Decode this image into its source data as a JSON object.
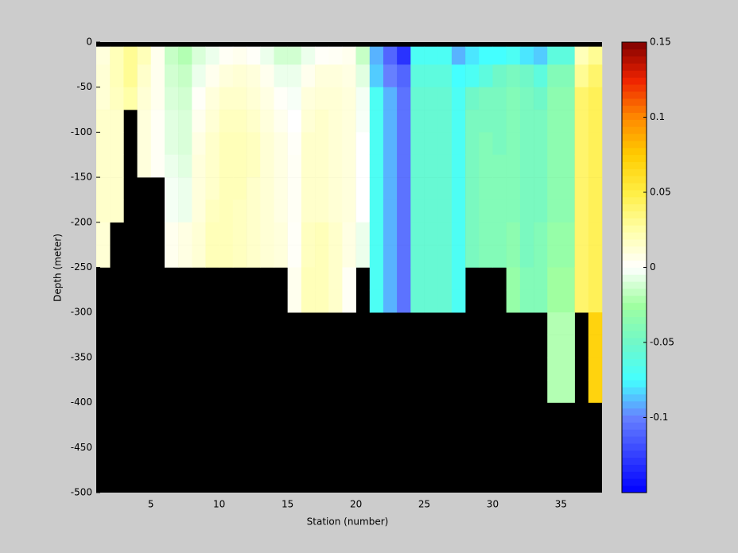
{
  "chart_data": {
    "type": "heatmap",
    "xlabel": "Station (number)",
    "ylabel": "Depth (meter)",
    "xlim": [
      1,
      38
    ],
    "ylim": [
      -500,
      0
    ],
    "xticks": [
      5,
      10,
      15,
      20,
      25,
      30,
      35
    ],
    "yticks": [
      0,
      -50,
      -100,
      -150,
      -200,
      -250,
      -300,
      -350,
      -400,
      -450,
      -500
    ],
    "x_edges": [
      1,
      2,
      3,
      4,
      5,
      6,
      7,
      8,
      9,
      10,
      11,
      12,
      13,
      14,
      15,
      16,
      17,
      18,
      19,
      20,
      21,
      22,
      23,
      24,
      25,
      26,
      27,
      28,
      29,
      30,
      31,
      32,
      33,
      34,
      35,
      36,
      37,
      38
    ],
    "y_edges": [
      -5,
      -25,
      -50,
      -75,
      -100,
      -125,
      -150,
      -175,
      -200,
      -225,
      -250,
      -275,
      -300,
      -325,
      -350,
      -375,
      -400,
      -425,
      -450,
      -475,
      -500
    ],
    "mask_color": "#000000",
    "clim": [
      -0.15,
      0.15
    ],
    "cticks": [
      -0.1,
      -0.05,
      0,
      0.05,
      0.1,
      0.15
    ],
    "colormap": [
      {
        "value": -0.15,
        "color": "#0000ff"
      },
      {
        "value": -0.1,
        "color": "#6680ff"
      },
      {
        "value": -0.075,
        "color": "#44ffff"
      },
      {
        "value": -0.05,
        "color": "#70f8c8"
      },
      {
        "value": -0.025,
        "color": "#a0ffa0"
      },
      {
        "value": 0,
        "color": "#ffffff"
      },
      {
        "value": 0.025,
        "color": "#ffffa8"
      },
      {
        "value": 0.05,
        "color": "#ffee44"
      },
      {
        "value": 0.075,
        "color": "#ffcc00"
      },
      {
        "value": 0.1,
        "color": "#ff8800"
      },
      {
        "value": 0.125,
        "color": "#ee2200"
      },
      {
        "value": 0.15,
        "color": "#800000"
      }
    ],
    "z": [
      [
        0.01,
        0.012,
        0.012,
        0.015,
        0.015,
        0.015,
        0.015,
        0.015,
        0.012,
        0.012,
        null,
        null,
        null,
        null,
        null,
        null,
        null,
        null,
        null,
        null
      ],
      [
        0.02,
        0.02,
        0.018,
        0.015,
        0.015,
        0.015,
        0.015,
        0.015,
        null,
        null,
        null,
        null,
        null,
        null,
        null,
        null,
        null,
        null,
        null,
        null
      ],
      [
        0.03,
        0.03,
        0.025,
        null,
        null,
        null,
        null,
        null,
        null,
        null,
        null,
        null,
        null,
        null,
        null,
        null,
        null,
        null,
        null,
        null
      ],
      [
        0.02,
        0.015,
        0.012,
        0.01,
        0.01,
        0.01,
        null,
        null,
        null,
        null,
        null,
        null,
        null,
        null,
        null,
        null,
        null,
        null,
        null,
        null
      ],
      [
        0.005,
        0.005,
        0.005,
        0.003,
        0.003,
        0.003,
        null,
        null,
        null,
        null,
        null,
        null,
        null,
        null,
        null,
        null,
        null,
        null,
        null,
        null
      ],
      [
        -0.015,
        -0.012,
        -0.01,
        -0.008,
        -0.008,
        -0.005,
        -0.003,
        -0.003,
        0.005,
        0.005,
        null,
        null,
        null,
        null,
        null,
        null,
        null,
        null,
        null,
        null
      ],
      [
        -0.02,
        -0.015,
        -0.012,
        -0.01,
        -0.01,
        -0.008,
        -0.005,
        -0.005,
        0.008,
        0.008,
        null,
        null,
        null,
        null,
        null,
        null,
        null,
        null,
        null,
        null
      ],
      [
        -0.01,
        -0.005,
        0.002,
        0.005,
        0.008,
        0.01,
        0.01,
        0.01,
        0.012,
        0.012,
        null,
        null,
        null,
        null,
        null,
        null,
        null,
        null,
        null,
        null
      ],
      [
        -0.005,
        0.005,
        0.01,
        0.012,
        0.015,
        0.015,
        0.015,
        0.018,
        0.02,
        0.02,
        null,
        null,
        null,
        null,
        null,
        null,
        null,
        null,
        null,
        null
      ],
      [
        0.003,
        0.01,
        0.015,
        0.018,
        0.02,
        0.02,
        0.02,
        0.02,
        0.02,
        0.02,
        null,
        null,
        null,
        null,
        null,
        null,
        null,
        null,
        null,
        null
      ],
      [
        0.005,
        0.012,
        0.015,
        0.018,
        0.02,
        0.02,
        0.02,
        0.018,
        0.018,
        0.018,
        null,
        null,
        null,
        null,
        null,
        null,
        null,
        null,
        null,
        null
      ],
      [
        0.002,
        0.01,
        0.012,
        0.015,
        0.018,
        0.018,
        0.015,
        0.015,
        0.015,
        0.015,
        null,
        null,
        null,
        null,
        null,
        null,
        null,
        null,
        null,
        null
      ],
      [
        -0.005,
        0.005,
        0.008,
        0.01,
        0.012,
        0.012,
        0.012,
        0.012,
        0.012,
        0.012,
        null,
        null,
        null,
        null,
        null,
        null,
        null,
        null,
        null,
        null
      ],
      [
        -0.012,
        -0.005,
        0.002,
        0.005,
        0.008,
        0.008,
        0.008,
        0.008,
        0.01,
        0.01,
        null,
        null,
        null,
        null,
        null,
        null,
        null,
        null,
        null,
        null
      ],
      [
        -0.012,
        -0.005,
        -0.002,
        0,
        0.002,
        0.003,
        0.003,
        0.003,
        0.002,
        0.002,
        0.005,
        0.005,
        null,
        null,
        null,
        null,
        null,
        null,
        null,
        null
      ],
      [
        -0.005,
        0.005,
        0.01,
        0.012,
        0.015,
        0.015,
        0.015,
        0.015,
        0.018,
        0.018,
        0.02,
        0.02,
        null,
        null,
        null,
        null,
        null,
        null,
        null,
        null
      ],
      [
        0.002,
        0.01,
        0.012,
        0.015,
        0.015,
        0.015,
        0.015,
        0.015,
        0.02,
        0.02,
        0.02,
        0.02,
        null,
        null,
        null,
        null,
        null,
        null,
        null,
        null
      ],
      [
        0.003,
        0.01,
        0.012,
        0.012,
        0.012,
        0.012,
        0.012,
        0.012,
        0.015,
        0.015,
        0.015,
        0.015,
        null,
        null,
        null,
        null,
        null,
        null,
        null,
        null
      ],
      [
        0.005,
        0.008,
        0.01,
        0.01,
        0.01,
        0.01,
        0.01,
        0.01,
        0.008,
        0.008,
        0.003,
        0.003,
        null,
        null,
        null,
        null,
        null,
        null,
        null,
        null
      ],
      [
        -0.015,
        -0.008,
        -0.003,
        -0.002,
        0,
        0,
        0,
        0,
        -0.005,
        -0.005,
        null,
        null,
        null,
        null,
        null,
        null,
        null,
        null,
        null,
        null
      ],
      [
        -0.09,
        -0.085,
        -0.07,
        -0.07,
        -0.07,
        -0.07,
        -0.07,
        -0.07,
        -0.07,
        -0.07,
        -0.07,
        -0.07,
        null,
        null,
        null,
        null,
        null,
        null,
        null,
        null
      ],
      [
        -0.11,
        -0.1,
        -0.09,
        -0.09,
        -0.09,
        -0.09,
        -0.09,
        -0.09,
        -0.09,
        -0.09,
        -0.09,
        -0.09,
        null,
        null,
        null,
        null,
        null,
        null,
        null,
        null
      ],
      [
        -0.13,
        -0.11,
        -0.105,
        -0.105,
        -0.105,
        -0.105,
        -0.105,
        -0.105,
        -0.105,
        -0.105,
        -0.105,
        -0.105,
        null,
        null,
        null,
        null,
        null,
        null,
        null,
        null
      ],
      [
        -0.07,
        -0.06,
        -0.055,
        -0.055,
        -0.055,
        -0.055,
        -0.055,
        -0.055,
        -0.055,
        -0.055,
        -0.055,
        -0.055,
        null,
        null,
        null,
        null,
        null,
        null,
        null,
        null
      ],
      [
        -0.07,
        -0.06,
        -0.055,
        -0.055,
        -0.055,
        -0.055,
        -0.055,
        -0.055,
        -0.055,
        -0.055,
        -0.055,
        -0.055,
        null,
        null,
        null,
        null,
        null,
        null,
        null,
        null
      ],
      [
        -0.07,
        -0.06,
        -0.055,
        -0.055,
        -0.055,
        -0.055,
        -0.055,
        -0.055,
        -0.055,
        -0.055,
        -0.055,
        -0.055,
        null,
        null,
        null,
        null,
        null,
        null,
        null,
        null
      ],
      [
        -0.09,
        -0.075,
        -0.07,
        -0.07,
        -0.07,
        -0.07,
        -0.07,
        -0.07,
        -0.07,
        -0.07,
        -0.07,
        -0.07,
        null,
        null,
        null,
        null,
        null,
        null,
        null,
        null
      ],
      [
        -0.08,
        -0.07,
        -0.05,
        -0.045,
        -0.045,
        -0.045,
        -0.045,
        -0.045,
        -0.045,
        -0.045,
        null,
        null,
        null,
        null,
        null,
        null,
        null,
        null,
        null,
        null
      ],
      [
        -0.075,
        -0.06,
        -0.045,
        -0.045,
        -0.04,
        -0.04,
        -0.04,
        -0.04,
        -0.04,
        -0.04,
        null,
        null,
        null,
        null,
        null,
        null,
        null,
        null,
        null,
        null
      ],
      [
        -0.075,
        -0.05,
        -0.045,
        -0.045,
        -0.045,
        -0.04,
        -0.04,
        -0.04,
        -0.04,
        -0.04,
        null,
        null,
        null,
        null,
        null,
        null,
        null,
        null,
        null,
        null
      ],
      [
        -0.07,
        -0.045,
        -0.04,
        -0.04,
        -0.04,
        -0.04,
        -0.04,
        -0.04,
        -0.035,
        -0.035,
        -0.03,
        -0.03,
        null,
        null,
        null,
        null,
        null,
        null,
        null,
        null
      ],
      [
        -0.08,
        -0.05,
        -0.045,
        -0.045,
        -0.045,
        -0.045,
        -0.045,
        -0.045,
        -0.045,
        -0.045,
        -0.04,
        -0.04,
        null,
        null,
        null,
        null,
        null,
        null,
        null,
        null
      ],
      [
        -0.085,
        -0.06,
        -0.05,
        -0.045,
        -0.045,
        -0.045,
        -0.045,
        -0.045,
        -0.04,
        -0.04,
        -0.04,
        -0.04,
        null,
        null,
        null,
        null,
        null,
        null,
        null,
        null
      ],
      [
        -0.06,
        -0.04,
        -0.035,
        -0.035,
        -0.035,
        -0.035,
        -0.035,
        -0.035,
        -0.03,
        -0.03,
        -0.025,
        -0.025,
        -0.02,
        -0.02,
        -0.02,
        -0.02,
        null,
        null,
        null,
        null
      ],
      [
        -0.06,
        -0.04,
        -0.035,
        -0.035,
        -0.035,
        -0.035,
        -0.035,
        -0.035,
        -0.03,
        -0.03,
        -0.025,
        -0.025,
        -0.02,
        -0.02,
        -0.02,
        -0.02,
        null,
        null,
        null,
        null
      ],
      [
        0.02,
        0.03,
        0.04,
        0.04,
        0.04,
        0.04,
        0.04,
        0.04,
        0.04,
        0.04,
        0.04,
        0.04,
        null,
        null,
        null,
        null,
        null,
        null,
        null,
        null
      ],
      [
        0.03,
        0.04,
        0.045,
        0.045,
        0.045,
        0.045,
        0.045,
        0.045,
        0.045,
        0.045,
        0.045,
        0.045,
        0.07,
        0.07,
        0.07,
        0.07,
        null,
        null,
        null,
        null
      ]
    ]
  }
}
